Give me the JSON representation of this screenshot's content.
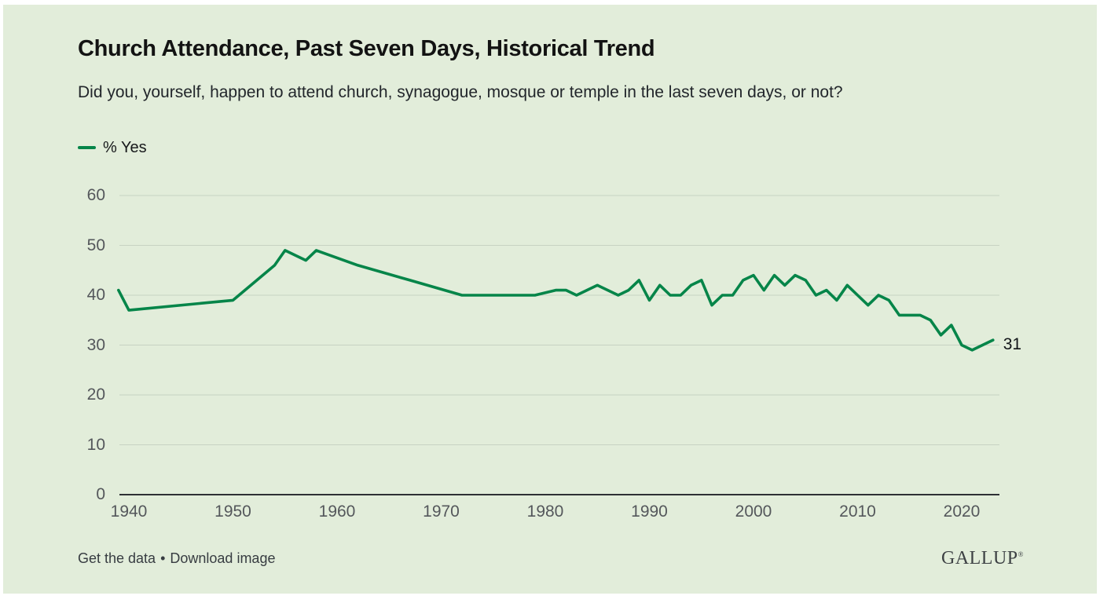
{
  "header": {
    "title": "Church Attendance, Past Seven Days, Historical Trend",
    "subtitle": "Did you, yourself, happen to attend church, synagogue, mosque or temple in the last seven days, or not?"
  },
  "legend": {
    "label": "% Yes"
  },
  "colors": {
    "background": "#e2edda",
    "line": "#068549",
    "grid": "#c7d2c2",
    "axis": "#2d3034",
    "tick_text": "#54575b",
    "end_label_text": "#111418"
  },
  "chart_data": {
    "type": "line",
    "title": "Church Attendance, Past Seven Days, Historical Trend",
    "xlabel": "",
    "ylabel": "",
    "ylim": [
      0,
      60
    ],
    "y_ticks": [
      0,
      10,
      20,
      30,
      40,
      50,
      60
    ],
    "x_ticks": [
      1940,
      1950,
      1960,
      1970,
      1980,
      1990,
      2000,
      2010,
      2020
    ],
    "grid": "horizontal",
    "legend_position": "top-left",
    "end_label": "31",
    "series": [
      {
        "name": "% Yes",
        "points": [
          [
            1939,
            41
          ],
          [
            1940,
            37
          ],
          [
            1950,
            39
          ],
          [
            1954,
            46
          ],
          [
            1955,
            49
          ],
          [
            1957,
            47
          ],
          [
            1958,
            49
          ],
          [
            1962,
            46
          ],
          [
            1967,
            43
          ],
          [
            1972,
            40
          ],
          [
            1979,
            40
          ],
          [
            1981,
            41
          ],
          [
            1982,
            41
          ],
          [
            1983,
            40
          ],
          [
            1984,
            41
          ],
          [
            1985,
            42
          ],
          [
            1986,
            41
          ],
          [
            1987,
            40
          ],
          [
            1988,
            41
          ],
          [
            1989,
            43
          ],
          [
            1990,
            39
          ],
          [
            1991,
            42
          ],
          [
            1992,
            40
          ],
          [
            1993,
            40
          ],
          [
            1994,
            42
          ],
          [
            1995,
            43
          ],
          [
            1996,
            38
          ],
          [
            1997,
            40
          ],
          [
            1998,
            40
          ],
          [
            1999,
            43
          ],
          [
            2000,
            44
          ],
          [
            2001,
            41
          ],
          [
            2002,
            44
          ],
          [
            2003,
            42
          ],
          [
            2004,
            44
          ],
          [
            2005,
            43
          ],
          [
            2006,
            40
          ],
          [
            2007,
            41
          ],
          [
            2008,
            39
          ],
          [
            2009,
            42
          ],
          [
            2010,
            40
          ],
          [
            2011,
            38
          ],
          [
            2012,
            40
          ],
          [
            2013,
            39
          ],
          [
            2014,
            36
          ],
          [
            2015,
            36
          ],
          [
            2016,
            36
          ],
          [
            2017,
            35
          ],
          [
            2018,
            32
          ],
          [
            2019,
            34
          ],
          [
            2020,
            30
          ],
          [
            2021,
            29
          ],
          [
            2022,
            30
          ],
          [
            2023,
            31
          ]
        ]
      }
    ]
  },
  "footer": {
    "get_data_label": "Get the data",
    "separator": "•",
    "download_label": "Download image",
    "brand": "GALLUP",
    "brand_mark": "®"
  }
}
